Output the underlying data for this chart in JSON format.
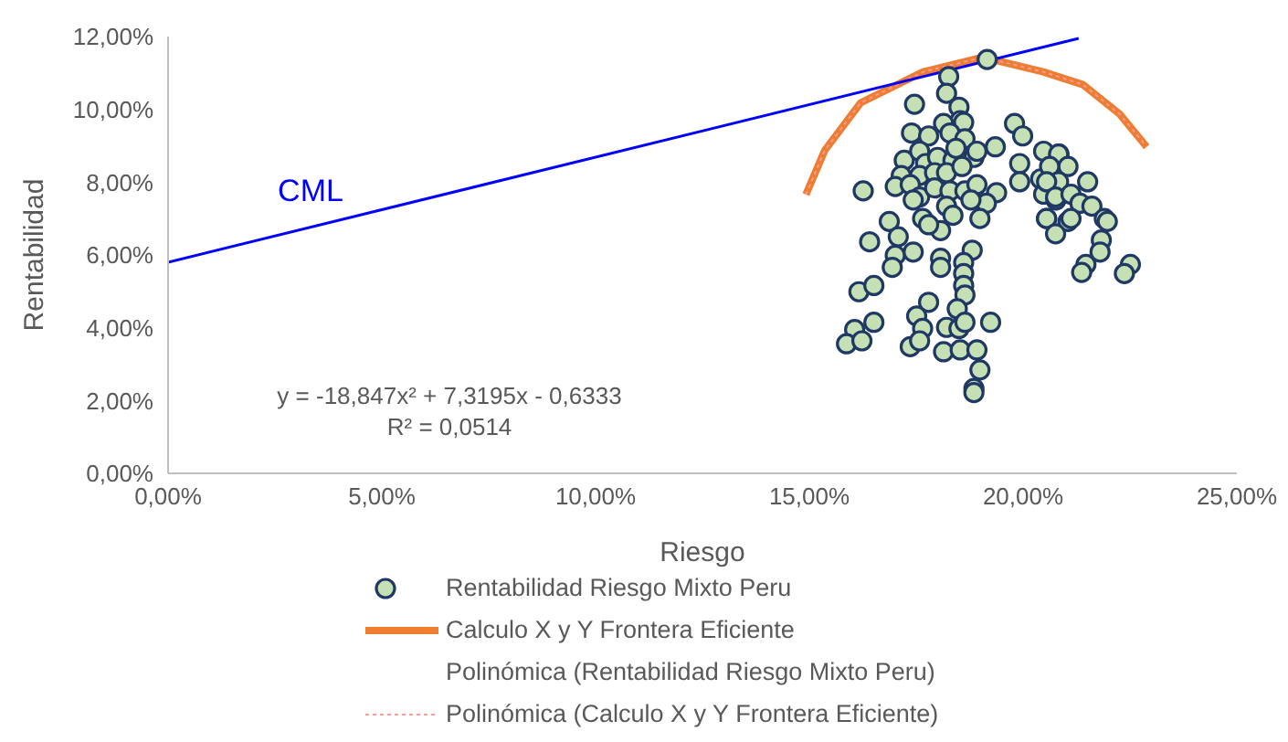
{
  "chart_data": {
    "type": "scatter",
    "xlabel": "Riesgo",
    "ylabel": "Rentabilidad",
    "xlim": [
      0,
      25
    ],
    "ylim": [
      0,
      12
    ],
    "xticks": [
      {
        "value": 0,
        "label": "0,00%"
      },
      {
        "value": 5,
        "label": "5,00%"
      },
      {
        "value": 10,
        "label": "10,00%"
      },
      {
        "value": 15,
        "label": "15,00%"
      },
      {
        "value": 20,
        "label": "20,00%"
      },
      {
        "value": 25,
        "label": "25,00%"
      }
    ],
    "yticks": [
      {
        "value": 0,
        "label": "0,00%"
      },
      {
        "value": 2,
        "label": "2,00%"
      },
      {
        "value": 4,
        "label": "4,00%"
      },
      {
        "value": 6,
        "label": "6,00%"
      },
      {
        "value": 8,
        "label": "8,00%"
      },
      {
        "value": 10,
        "label": "10,00%"
      },
      {
        "value": 12,
        "label": "12,00%"
      }
    ],
    "legend": "bottom",
    "annotations": [
      "CML",
      "y = -18,847x² + 7,3195x - 0,6333",
      "R² = 0,0514"
    ],
    "series": [
      {
        "name": "Rentabilidad Riesgo Mixto Peru",
        "color": "#c5e0b4",
        "marker": "circle",
        "x": [
          19.16,
          18.26,
          18.21,
          18.5,
          17.46,
          18.53,
          18.14,
          18.61,
          17.39,
          17.79,
          18.29,
          18.64,
          19.8,
          19.99,
          19.35,
          17.22,
          17.58,
          17.72,
          18.0,
          18.36,
          18.85,
          18.92,
          18.43,
          17.15,
          17.58,
          17.93,
          18.21,
          18.57,
          19.92,
          19.92,
          20.48,
          20.84,
          20.41,
          20.48,
          20.77,
          20.55,
          21.05,
          16.26,
          17.01,
          17.36,
          17.58,
          17.93,
          18.29,
          18.64,
          18.92,
          19.38,
          19.14,
          18.78,
          17.43,
          18.21,
          18.99,
          17.65,
          18.07,
          18.36,
          16.87,
          17.08,
          17.79,
          16.41,
          17.01,
          17.43,
          16.94,
          18.07,
          18.07,
          18.81,
          18.61,
          18.61,
          18.61,
          18.64,
          18.46,
          16.16,
          16.51,
          17.79,
          17.51,
          17.65,
          18.21,
          18.5,
          18.64,
          19.24,
          16.51,
          16.06,
          15.87,
          16.23,
          17.36,
          17.58,
          18.14,
          18.53,
          18.92,
          18.99,
          18.85,
          18.85,
          20.83,
          21.05,
          20.62,
          20.83,
          20.55,
          20.76,
          21.12,
          21.51,
          21.33,
          21.61,
          21.12,
          20.55,
          20.76,
          21.9,
          21.97,
          21.83,
          21.8,
          21.47,
          21.37,
          22.51,
          22.37
        ],
        "values": [
          11.37,
          10.9,
          10.44,
          10.06,
          10.14,
          9.69,
          9.61,
          9.64,
          9.35,
          9.27,
          9.35,
          9.19,
          9.61,
          9.27,
          8.97,
          8.6,
          8.85,
          8.51,
          8.68,
          8.6,
          8.68,
          8.85,
          8.93,
          8.18,
          8.18,
          8.26,
          8.26,
          8.43,
          8.51,
          8.01,
          8.85,
          8.77,
          8.09,
          7.67,
          7.51,
          7.0,
          6.92,
          7.76,
          7.88,
          7.93,
          7.59,
          7.84,
          7.76,
          7.76,
          7.93,
          7.71,
          7.42,
          7.51,
          7.51,
          7.34,
          7.0,
          7.0,
          6.67,
          7.09,
          6.92,
          6.5,
          6.83,
          6.36,
          5.99,
          6.08,
          5.66,
          5.91,
          5.66,
          6.13,
          5.79,
          5.49,
          5.16,
          4.9,
          4.52,
          4.99,
          5.16,
          4.7,
          4.32,
          3.98,
          4.01,
          3.98,
          4.15,
          4.15,
          4.15,
          3.95,
          3.56,
          3.64,
          3.48,
          3.64,
          3.34,
          3.39,
          3.39,
          2.84,
          2.33,
          2.22,
          8.77,
          8.43,
          8.43,
          8.01,
          8.01,
          7.59,
          7.67,
          8.01,
          7.42,
          7.34,
          7.0,
          7.0,
          6.58,
          7.0,
          6.92,
          6.41,
          6.08,
          5.74,
          5.52,
          5.74,
          5.49
        ]
      },
      {
        "name": "Calculo X y Y Frontera Eficiente",
        "type": "line",
        "color": "#ed7d31",
        "line_style": "solid",
        "x": [
          14.92,
          15.36,
          16.2,
          17.66,
          19.06,
          20.47,
          21.4,
          22.26,
          22.89
        ],
        "values": [
          7.66,
          8.87,
          10.18,
          11.03,
          11.43,
          11.03,
          10.68,
          9.87,
          8.97
        ]
      },
      {
        "name": "Polinómica (Rentabilidad Riesgo Mixto Peru)",
        "type": "line"
      },
      {
        "name": "Polinómica (Calculo X y Y Frontera Eficiente)",
        "type": "line",
        "color": "#ff9999",
        "line_style": "dotted",
        "x": [
          14.92,
          15.36,
          16.2,
          17.66,
          19.06,
          20.47,
          21.4,
          22.26,
          22.89
        ],
        "values": [
          7.66,
          8.87,
          10.18,
          11.03,
          11.43,
          11.03,
          10.68,
          9.87,
          8.97
        ]
      },
      {
        "type": "line",
        "color": "#0000ff",
        "line_style": "solid",
        "x": [
          0,
          21.3
        ],
        "values": [
          5.8,
          11.95
        ]
      }
    ]
  }
}
